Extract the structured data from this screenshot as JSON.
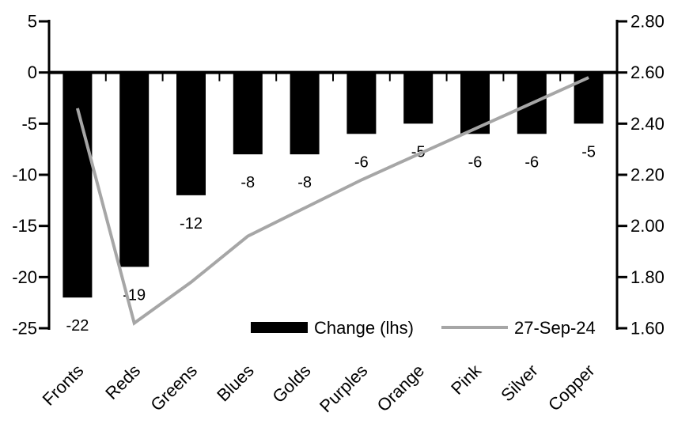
{
  "chart_data": {
    "type": "bar",
    "title": "",
    "categories": [
      "Fronts",
      "Reds",
      "Greens",
      "Blues",
      "Golds",
      "Purples",
      "Orange",
      "Pink",
      "Silver",
      "Copper"
    ],
    "series": [
      {
        "name": "Change (lhs)",
        "type": "bar",
        "axis": "left",
        "color": "#000000",
        "values": [
          -22,
          -19,
          -12,
          -8,
          -8,
          -6,
          -5,
          -6,
          -6,
          -5
        ],
        "data_labels": [
          "-22",
          "-19",
          "-12",
          "-8",
          "-8",
          "-6",
          "-5",
          "-6",
          "-6",
          "-5"
        ]
      },
      {
        "name": "27-Sep-24",
        "type": "line",
        "axis": "right",
        "color": "#a6a6a6",
        "values": [
          2.46,
          1.62,
          1.78,
          1.96,
          2.07,
          2.18,
          2.28,
          2.38,
          2.48,
          2.58
        ]
      }
    ],
    "left_axis": {
      "min": -25,
      "max": 5,
      "tick_labels": [
        "5",
        "0",
        "-5",
        "-10",
        "-15",
        "-20",
        "-25"
      ]
    },
    "right_axis": {
      "min": 1.6,
      "max": 2.8,
      "tick_labels": [
        "2.80",
        "2.60",
        "2.40",
        "2.20",
        "2.00",
        "1.80",
        "1.60"
      ]
    },
    "legend": {
      "position": "bottom-inside",
      "entries": [
        "Change (lhs)",
        "27-Sep-24"
      ]
    },
    "grid": false,
    "xlabel": "",
    "ylabel_left": "",
    "ylabel_right": ""
  },
  "colors": {
    "background": "#ffffff",
    "axis": "#000000",
    "bar": "#000000",
    "line": "#a6a6a6",
    "text": "#000000"
  }
}
